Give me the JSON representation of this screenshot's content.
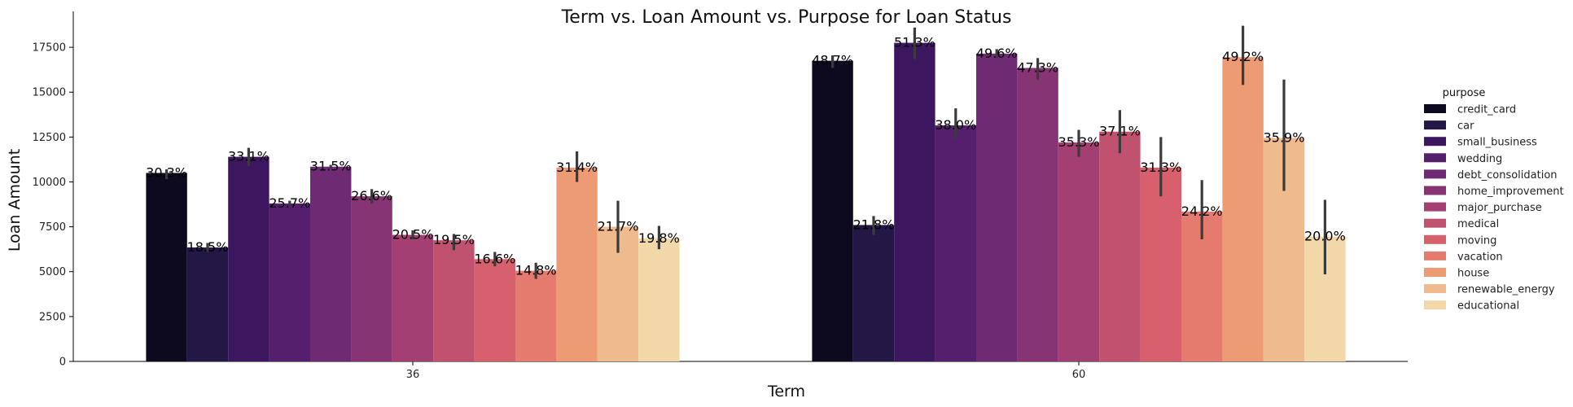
{
  "chart_data": {
    "type": "bar",
    "title": "Term vs. Loan Amount vs. Purpose for Loan Status",
    "xlabel": "Term",
    "ylabel": "Loan Amount",
    "categories": [
      "36",
      "60"
    ],
    "ylim": [
      0,
      19500
    ],
    "yticks": [
      0,
      2500,
      5000,
      7500,
      10000,
      12500,
      15000,
      17500
    ],
    "legend": {
      "title": "purpose",
      "position": "right"
    },
    "series": [
      {
        "name": "credit_card",
        "color": "#0d0a20",
        "values": [
          10500,
          16750
        ],
        "err_low": [
          10150,
          16350
        ],
        "err_high": [
          10700,
          17050
        ],
        "labels": [
          "30.3%",
          "48.7%"
        ]
      },
      {
        "name": "car",
        "color": "#221745",
        "values": [
          6350,
          7600
        ],
        "err_low": [
          6100,
          7050
        ],
        "err_high": [
          6600,
          8100
        ],
        "labels": [
          "18.5%",
          "21.8%"
        ]
      },
      {
        "name": "small_business",
        "color": "#3c1760",
        "values": [
          11400,
          17750
        ],
        "err_low": [
          10900,
          16850
        ],
        "err_high": [
          11900,
          18600
        ],
        "labels": [
          "33.1%",
          "51.3%"
        ]
      },
      {
        "name": "wedding",
        "color": "#561f6e",
        "values": [
          8800,
          13150
        ],
        "err_low": [
          8650,
          12400
        ],
        "err_high": [
          8950,
          14100
        ],
        "labels": [
          "25.7%",
          "38.0%"
        ]
      },
      {
        "name": "debt_consolidation",
        "color": "#6e2b74",
        "values": [
          10850,
          17150
        ],
        "err_low": [
          10750,
          16900
        ],
        "err_high": [
          10950,
          17400
        ],
        "labels": [
          "31.5%",
          "49.6%"
        ]
      },
      {
        "name": "home_improvement",
        "color": "#863474",
        "values": [
          9200,
          16350
        ],
        "err_low": [
          8800,
          15700
        ],
        "err_high": [
          9600,
          16900
        ],
        "labels": [
          "26.6%",
          "47.3%"
        ]
      },
      {
        "name": "major_purchase",
        "color": "#a33f72",
        "values": [
          7050,
          12200
        ],
        "err_low": [
          6800,
          11400
        ],
        "err_high": [
          7300,
          12900
        ],
        "labels": [
          "20.5%",
          "35.3%"
        ]
      },
      {
        "name": "medical",
        "color": "#c0526f",
        "values": [
          6750,
          12800
        ],
        "err_low": [
          6200,
          11600
        ],
        "err_high": [
          7100,
          14000
        ],
        "labels": [
          "19.5%",
          "37.1%"
        ]
      },
      {
        "name": "moving",
        "color": "#d6606b",
        "values": [
          5700,
          10800
        ],
        "err_low": [
          5300,
          9200
        ],
        "err_high": [
          6100,
          12500
        ],
        "labels": [
          "16.6%",
          "31.3%"
        ]
      },
      {
        "name": "vacation",
        "color": "#e57a6e",
        "values": [
          5050,
          8350
        ],
        "err_low": [
          4600,
          6800
        ],
        "err_high": [
          5500,
          10100
        ],
        "labels": [
          "14.8%",
          "24.2%"
        ]
      },
      {
        "name": "house",
        "color": "#ec9b74",
        "values": [
          10800,
          16950
        ],
        "err_low": [
          10000,
          15400
        ],
        "err_high": [
          11700,
          18700
        ],
        "labels": [
          "31.4%",
          "49.2%"
        ]
      },
      {
        "name": "renewable_energy",
        "color": "#efba8c",
        "values": [
          7500,
          12450
        ],
        "err_low": [
          6050,
          9500
        ],
        "err_high": [
          8950,
          15700
        ],
        "labels": [
          "21.7%",
          "35.9%"
        ]
      },
      {
        "name": "educational",
        "color": "#f2d8a9",
        "values": [
          6850,
          6950
        ],
        "err_low": [
          6250,
          4850
        ],
        "err_high": [
          7550,
          9000
        ],
        "labels": [
          "19.8%",
          "20.0%"
        ]
      }
    ]
  }
}
